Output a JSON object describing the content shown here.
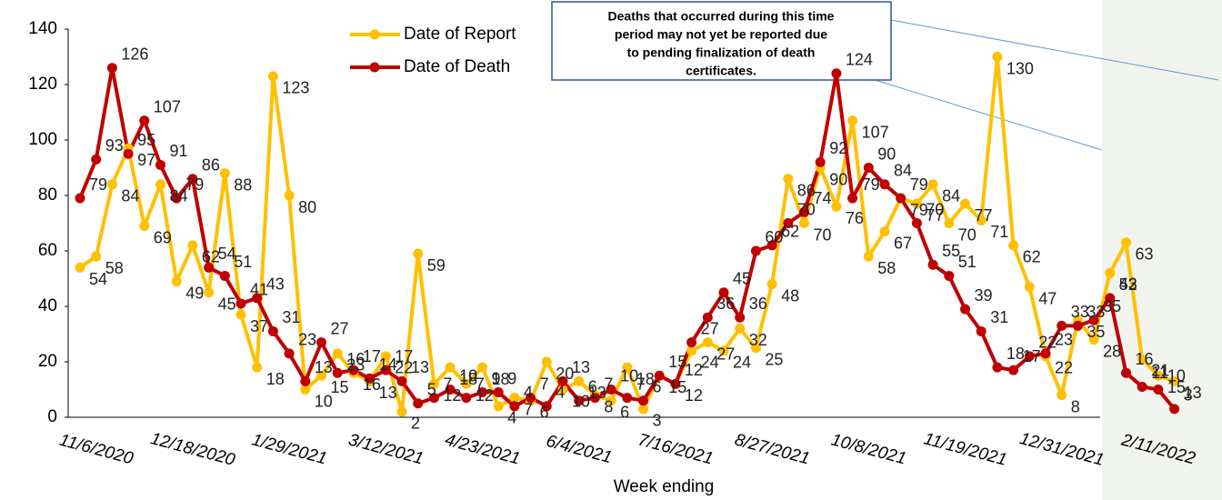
{
  "chart_data": {
    "type": "line",
    "annotation": [
      "Deaths that occurred during this time",
      "period may not yet be reported due",
      "to pending finalization of death",
      "certificates."
    ],
    "x_label": "Week ending",
    "categories": [
      null,
      "11/6/2020",
      null,
      null,
      null,
      null,
      null,
      "12/18/2020",
      null,
      null,
      null,
      null,
      null,
      "1/29/2021",
      null,
      null,
      null,
      null,
      null,
      "3/12/2021",
      null,
      null,
      null,
      null,
      null,
      "4/23/2021",
      null,
      null,
      null,
      null,
      null,
      "6/4/2021",
      null,
      null,
      null,
      null,
      null,
      "7/16/2021",
      null,
      null,
      null,
      null,
      null,
      "8/27/2021",
      null,
      null,
      null,
      null,
      null,
      "10/8/2021",
      null,
      null,
      null,
      null,
      null,
      "11/19/2021",
      null,
      null,
      null,
      null,
      null,
      "12/31/2021",
      null,
      null,
      null,
      null,
      null,
      "2/11/2022",
      null
    ],
    "series": [
      {
        "name": "Date of Report",
        "color": "#ffc000",
        "values": [
          54,
          58,
          84,
          97,
          69,
          84,
          49,
          62,
          45,
          88,
          37,
          18,
          123,
          80,
          10,
          15,
          23,
          16,
          13,
          22,
          2,
          59,
          12,
          18,
          12,
          18,
          4,
          7,
          6,
          20,
          10,
          13,
          8,
          6,
          18,
          3,
          15,
          12,
          24,
          27,
          24,
          32,
          25,
          48,
          86,
          70,
          90,
          76,
          107,
          58,
          67,
          79,
          77,
          84,
          70,
          77,
          71,
          130,
          62,
          47,
          22,
          8,
          35,
          28,
          52,
          63,
          21,
          15,
          13
        ]
      },
      {
        "name": "Date of Death",
        "color": "#c00000",
        "values": [
          79,
          93,
          126,
          95,
          107,
          91,
          79,
          86,
          54,
          51,
          41,
          43,
          31,
          23,
          13,
          27,
          16,
          17,
          14,
          17,
          13,
          5,
          7,
          10,
          7,
          9,
          9,
          4,
          7,
          4,
          13,
          6,
          7,
          10,
          7,
          6,
          15,
          12,
          27,
          36,
          45,
          36,
          60,
          62,
          70,
          74,
          92,
          124,
          79,
          90,
          84,
          79,
          70,
          55,
          51,
          39,
          31,
          18,
          17,
          22,
          23,
          33,
          33,
          35,
          43,
          16,
          11,
          10,
          3
        ]
      }
    ],
    "ylim": [
      0,
      140
    ],
    "yticks": [
      0,
      20,
      40,
      60,
      80,
      100,
      120,
      140
    ],
    "grid": false,
    "legend": "top"
  }
}
